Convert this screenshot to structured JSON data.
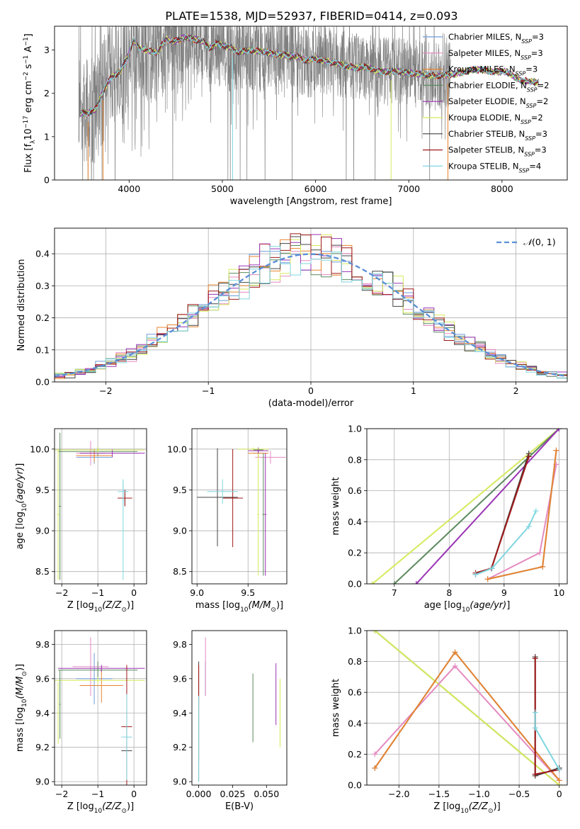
{
  "figure_title": "PLATE=1538, MJD=52937, FIBERID=0414, z=0.093",
  "colors": {
    "Chabrier MILES": "#6f9bd8",
    "Salpeter MILES": "#e58ac1",
    "Kroupa MILES": "#e7842e",
    "Chabrier ELODIE": "#5c8a5e",
    "Salpeter ELODIE": "#9a33b5",
    "Kroupa ELODIE": "#d6ea5c",
    "Chabrier STELIB": "#444444",
    "Salpeter STELIB": "#a01818",
    "Kroupa STELIB": "#7fd6df",
    "data": "#808080",
    "normal": "#5b8fd6"
  },
  "chart_data": [
    {
      "id": "spectrum",
      "type": "line",
      "xlabel": "wavelength [Angstrom, rest frame]",
      "ylabel": "Flux [f_λ10^-17 erg cm^-2 s^-1 A^-1]",
      "xlim": [
        3200,
        8700
      ],
      "ylim": [
        0,
        3.55
      ],
      "xticks": [
        4000,
        5000,
        6000,
        7000,
        8000
      ],
      "yticks": [
        0,
        1,
        2,
        3
      ],
      "legend_position": "upper-right",
      "legend": [
        {
          "label": "Chabrier MILES, N_SSP=3",
          "series": "Chabrier MILES"
        },
        {
          "label": "Salpeter MILES, N_SSP=3",
          "series": "Salpeter MILES"
        },
        {
          "label": "Kroupa MILES, N_SSP=3",
          "series": "Kroupa MILES"
        },
        {
          "label": "Chabrier ELODIE, N_SSP=2",
          "series": "Chabrier ELODIE"
        },
        {
          "label": "Salpeter ELODIE, N_SSP=2",
          "series": "Salpeter ELODIE"
        },
        {
          "label": "Kroupa ELODIE, N_SSP=2",
          "series": "Kroupa ELODIE"
        },
        {
          "label": "Chabrier STELIB, N_SSP=3",
          "series": "Chabrier STELIB"
        },
        {
          "label": "Salpeter STELIB, N_SSP=3",
          "series": "Salpeter STELIB"
        },
        {
          "label": "Kroupa STELIB, N_SSP=4",
          "series": "Kroupa STELIB"
        }
      ],
      "continuum": [
        [
          3480,
          1.55
        ],
        [
          3560,
          1.55
        ],
        [
          3650,
          1.65
        ],
        [
          3720,
          2.05
        ],
        [
          3800,
          2.35
        ],
        [
          3900,
          2.5
        ],
        [
          3980,
          2.8
        ],
        [
          4050,
          3.25
        ],
        [
          4100,
          3.05
        ],
        [
          4200,
          3.0
        ],
        [
          4300,
          2.95
        ],
        [
          4400,
          3.25
        ],
        [
          4500,
          3.2
        ],
        [
          4600,
          3.3
        ],
        [
          4700,
          3.25
        ],
        [
          4800,
          3.2
        ],
        [
          4860,
          3.05
        ],
        [
          4950,
          3.15
        ],
        [
          5100,
          3.05
        ],
        [
          5175,
          2.95
        ],
        [
          5300,
          3.0
        ],
        [
          5450,
          2.95
        ],
        [
          5600,
          2.9
        ],
        [
          5800,
          2.85
        ],
        [
          5900,
          2.75
        ],
        [
          6000,
          2.8
        ],
        [
          6200,
          2.7
        ],
        [
          6400,
          2.6
        ],
        [
          6563,
          2.6
        ],
        [
          6700,
          2.5
        ],
        [
          6900,
          2.5
        ],
        [
          7100,
          2.45
        ],
        [
          7300,
          2.4
        ],
        [
          7500,
          2.45
        ],
        [
          7700,
          2.55
        ],
        [
          7900,
          2.5
        ],
        [
          8050,
          2.5
        ],
        [
          8200,
          2.3
        ],
        [
          8400,
          2.25
        ]
      ],
      "ssp_wavelength_range": [
        3480,
        8400
      ],
      "data_wavelength_range": [
        3460,
        7450
      ]
    },
    {
      "id": "residuals",
      "type": "histogram",
      "xlabel": "(data-model)/error",
      "ylabel": "Normed distribution",
      "xlim": [
        -2.5,
        2.5
      ],
      "ylim": [
        0,
        0.48
      ],
      "xticks": [
        -2,
        -1,
        0,
        1,
        2
      ],
      "yticks": [
        0.0,
        0.1,
        0.2,
        0.3,
        0.4
      ],
      "grid": true,
      "legend_position": "upper-right",
      "legend": [
        {
          "label": "N(0, 1)",
          "series": "normal"
        }
      ],
      "bin_width": 0.1
    },
    {
      "id": "age-vs-Z",
      "type": "errorbar",
      "xlabel": "Z [log10(Z/Z☉)]",
      "ylabel": "age  [log10(age/yr)]",
      "xlim": [
        -2.2,
        0.35
      ],
      "ylim": [
        8.35,
        10.25
      ],
      "xticks": [
        -2,
        -1,
        0
      ],
      "yticks": [
        8.5,
        9.0,
        9.5,
        10.0
      ],
      "grid": true,
      "points": [
        {
          "s": "Chabrier MILES",
          "x": -1.1,
          "xe": 0.5,
          "y": 9.9,
          "ye": 0.08
        },
        {
          "s": "Salpeter MILES",
          "x": -1.2,
          "xe": 0.4,
          "y": 9.95,
          "ye": 0.15
        },
        {
          "s": "Kroupa MILES",
          "x": -1.1,
          "xe": 0.5,
          "y": 9.92,
          "ye": 0.08
        },
        {
          "s": "Chabrier ELODIE",
          "x": -1.0,
          "xe": 1.1,
          "y": 9.97,
          "ye": 0.05
        },
        {
          "s": "Salpeter ELODIE",
          "x": -0.6,
          "xe": 0.9,
          "y": 9.95,
          "ye": 0.05
        },
        {
          "s": "Kroupa ELODIE",
          "x": -1.0,
          "xe": 1.3,
          "y": 9.99,
          "ye": 0.04
        },
        {
          "s": "Chabrier STELIB",
          "x": -0.25,
          "xe": 0.2,
          "y": 9.4,
          "ye": 0.1
        },
        {
          "s": "Salpeter STELIB",
          "x": -0.25,
          "xe": 0.2,
          "y": 9.4,
          "ye": 0.1
        },
        {
          "s": "Kroupa STELIB",
          "x": -0.3,
          "xe": 0.15,
          "y": 9.48,
          "ye": 0.15
        },
        {
          "s": "Chabrier ELODIE",
          "x": -2.05,
          "xe": 0.03,
          "y": 9.3,
          "ye": 0.9
        },
        {
          "s": "Kroupa ELODIE",
          "x": -2.1,
          "xe": 0.03,
          "y": 9.2,
          "ye": 0.8
        },
        {
          "s": "Kroupa STELIB",
          "x": -0.3,
          "xe": 0.03,
          "y": 9.0,
          "ye": 0.6
        }
      ]
    },
    {
      "id": "age-vs-mass",
      "type": "errorbar",
      "xlabel": "mass [log10(M/M☉)]",
      "ylabel": "",
      "xlim": [
        8.95,
        9.88
      ],
      "ylim": [
        8.35,
        10.25
      ],
      "xticks": [
        9.0,
        9.5
      ],
      "yticks": [
        8.5,
        9.0,
        9.5,
        10.0
      ],
      "grid": true,
      "points": [
        {
          "s": "Chabrier MILES",
          "x": 9.6,
          "xe": 0.05,
          "y": 9.95,
          "ye": 0.05
        },
        {
          "s": "Salpeter MILES",
          "x": 9.72,
          "xe": 0.15,
          "y": 9.9,
          "ye": 0.08
        },
        {
          "s": "Kroupa MILES",
          "x": 9.6,
          "xe": 0.1,
          "y": 9.95,
          "ye": 0.05
        },
        {
          "s": "Chabrier ELODIE",
          "x": 9.6,
          "xe": 0.05,
          "y": 9.99,
          "ye": 0.03
        },
        {
          "s": "Salpeter ELODIE",
          "x": 9.6,
          "xe": 0.1,
          "y": 9.98,
          "ye": 0.03
        },
        {
          "s": "Kroupa ELODIE",
          "x": 9.55,
          "xe": 0.15,
          "y": 10.0,
          "ye": 0.02
        },
        {
          "s": "Chabrier STELIB",
          "x": 9.2,
          "xe": 0.2,
          "y": 9.41,
          "ye": 0.6
        },
        {
          "s": "Salpeter STELIB",
          "x": 9.35,
          "xe": 0.1,
          "y": 9.4,
          "ye": 0.6
        },
        {
          "s": "Kroupa STELIB",
          "x": 9.25,
          "xe": 0.15,
          "y": 9.48,
          "ye": 0.15
        },
        {
          "s": "Chabrier ELODIE",
          "x": 9.65,
          "xe": 0.01,
          "y": 9.2,
          "ye": 0.75
        },
        {
          "s": "Kroupa ELODIE",
          "x": 9.6,
          "xe": 0.01,
          "y": 9.2,
          "ye": 0.75
        },
        {
          "s": "Salpeter ELODIE",
          "x": 9.67,
          "xe": 0.01,
          "y": 9.2,
          "ye": 0.75
        }
      ]
    },
    {
      "id": "weight-vs-age",
      "type": "line",
      "xlabel": "age  [log10(age/yr)]",
      "ylabel": "mass weight",
      "xlim": [
        6.5,
        10.15
      ],
      "ylim": [
        0,
        1.0
      ],
      "xticks": [
        7,
        8,
        9,
        10
      ],
      "yticks": [
        0.0,
        0.2,
        0.4,
        0.6,
        0.8,
        1.0
      ],
      "grid": true,
      "series": [
        {
          "s": "Kroupa ELODIE",
          "x": [
            6.6,
            10.0
          ],
          "y": [
            0.0,
            1.0
          ]
        },
        {
          "s": "Chabrier ELODIE",
          "x": [
            7.0,
            10.0
          ],
          "y": [
            0.0,
            1.0
          ]
        },
        {
          "s": "Salpeter ELODIE",
          "x": [
            7.4,
            10.0
          ],
          "y": [
            0.0,
            1.0
          ]
        },
        {
          "s": "Chabrier STELIB",
          "x": [
            8.48,
            8.77,
            9.45
          ],
          "y": [
            0.06,
            0.1,
            0.84
          ]
        },
        {
          "s": "Salpeter STELIB",
          "x": [
            8.48,
            8.77,
            9.45
          ],
          "y": [
            0.07,
            0.1,
            0.82
          ]
        },
        {
          "s": "Kroupa STELIB",
          "x": [
            8.48,
            8.78,
            9.45,
            9.58
          ],
          "y": [
            0.06,
            0.1,
            0.37,
            0.47
          ]
        },
        {
          "s": "Salpeter MILES",
          "x": [
            8.7,
            9.65,
            9.95
          ],
          "y": [
            0.03,
            0.2,
            0.77
          ]
        },
        {
          "s": "Chabrier MILES",
          "x": [
            8.7,
            9.7,
            9.95
          ],
          "y": [
            0.03,
            0.11,
            0.86
          ]
        },
        {
          "s": "Kroupa MILES",
          "x": [
            8.7,
            9.7,
            9.95
          ],
          "y": [
            0.03,
            0.11,
            0.86
          ]
        }
      ]
    },
    {
      "id": "mass-vs-Z",
      "type": "errorbar",
      "xlabel": "Z [log10(Z/Z☉)]",
      "ylabel": "mass [log10(M/M☉)]",
      "xlim": [
        -2.2,
        0.35
      ],
      "ylim": [
        8.98,
        9.88
      ],
      "xticks": [
        -2,
        -1,
        0
      ],
      "yticks": [
        9.0,
        9.2,
        9.4,
        9.6,
        9.8
      ],
      "grid": true,
      "points": [
        {
          "s": "Chabrier MILES",
          "x": -1.1,
          "xe": 0.5,
          "y": 9.6,
          "ye": 0.15
        },
        {
          "s": "Salpeter MILES",
          "x": -1.2,
          "xe": 0.5,
          "y": 9.67,
          "ye": 0.17
        },
        {
          "s": "Kroupa MILES",
          "x": -0.9,
          "xe": 0.6,
          "y": 9.56,
          "ye": 0.1
        },
        {
          "s": "Chabrier ELODIE",
          "x": -1.0,
          "xe": 1.1,
          "y": 9.65,
          "ye": 0.05
        },
        {
          "s": "Salpeter ELODIE",
          "x": -0.9,
          "xe": 1.2,
          "y": 9.66,
          "ye": 0.02
        },
        {
          "s": "Kroupa ELODIE",
          "x": -1.0,
          "xe": 1.3,
          "y": 9.59,
          "ye": 0.02
        },
        {
          "s": "Chabrier STELIB",
          "x": -0.2,
          "xe": 0.15,
          "y": 9.18,
          "ye": 0.15
        },
        {
          "s": "Salpeter STELIB",
          "x": -0.2,
          "xe": 0.15,
          "y": 9.32,
          "ye": 0.36
        },
        {
          "s": "Kroupa STELIB",
          "x": -0.2,
          "xe": 0.15,
          "y": 9.26,
          "ye": 0.25
        },
        {
          "s": "Kroupa ELODIE",
          "x": -2.1,
          "xe": 0.02,
          "y": 9.4,
          "ye": 0.18
        },
        {
          "s": "Chabrier ELODIE",
          "x": -2.05,
          "xe": 0.02,
          "y": 9.45,
          "ye": 0.2
        }
      ]
    },
    {
      "id": "mass-vs-EBV",
      "type": "errorbar",
      "xlabel": "E(B-V)",
      "ylabel": "",
      "xlim": [
        -0.005,
        0.065
      ],
      "ylim": [
        8.98,
        9.88
      ],
      "xticks": [
        0.0,
        0.025,
        0.05
      ],
      "yticks": [
        9.0,
        9.2,
        9.4,
        9.6,
        9.8
      ],
      "grid": false,
      "points": [
        {
          "s": "Chabrier MILES",
          "x": 0.005,
          "xe": 0,
          "y": 9.6,
          "ye": 0.1
        },
        {
          "s": "Salpeter MILES",
          "x": 0.005,
          "xe": 0,
          "y": 9.67,
          "ye": 0.17
        },
        {
          "s": "Kroupa MILES",
          "x": 0.0,
          "xe": 0,
          "y": 9.56,
          "ye": 0.12
        },
        {
          "s": "Chabrier ELODIE",
          "x": 0.04,
          "xe": 0,
          "y": 9.43,
          "ye": 0.2
        },
        {
          "s": "Salpeter ELODIE",
          "x": 0.057,
          "xe": 0,
          "y": 9.51,
          "ye": 0.18
        },
        {
          "s": "Kroupa ELODIE",
          "x": 0.06,
          "xe": 0,
          "y": 9.4,
          "ye": 0.2
        },
        {
          "s": "Chabrier STELIB",
          "x": 0.0,
          "xe": 0,
          "y": 9.35,
          "ye": 0.35
        },
        {
          "s": "Salpeter STELIB",
          "x": 0.0,
          "xe": 0,
          "y": 9.4,
          "ye": 0.28
        },
        {
          "s": "Kroupa STELIB",
          "x": 0.0,
          "xe": 0,
          "y": 9.25,
          "ye": 0.25
        }
      ]
    },
    {
      "id": "weight-vs-Z",
      "type": "line",
      "xlabel": "Z [log10(Z/Z☉)]",
      "ylabel": "mass weight",
      "xlim": [
        -2.4,
        0.1
      ],
      "ylim": [
        0,
        1.0
      ],
      "xticks": [
        -2.0,
        -1.5,
        -1.0,
        -0.5,
        0.0
      ],
      "yticks": [
        0.0,
        0.2,
        0.4,
        0.6,
        0.8,
        1.0
      ],
      "grid": true,
      "series": [
        {
          "s": "Chabrier ELODIE",
          "x": [
            -2.3,
            0.0
          ],
          "y": [
            1.0,
            0.0
          ]
        },
        {
          "s": "Kroupa ELODIE",
          "x": [
            -2.3,
            0.0
          ],
          "y": [
            1.0,
            0.0
          ]
        },
        {
          "s": "Salpeter MILES",
          "x": [
            -2.3,
            -1.3,
            0.0
          ],
          "y": [
            0.2,
            0.77,
            0.03
          ]
        },
        {
          "s": "Chabrier MILES",
          "x": [
            -2.3,
            -1.3,
            0.0
          ],
          "y": [
            0.11,
            0.86,
            0.03
          ]
        },
        {
          "s": "Kroupa MILES",
          "x": [
            -2.3,
            -1.3,
            0.0
          ],
          "y": [
            0.11,
            0.86,
            0.03
          ]
        },
        {
          "s": "Chabrier STELIB",
          "x": [
            -0.3,
            -0.3,
            0.0
          ],
          "y": [
            0.83,
            0.06,
            0.11
          ]
        },
        {
          "s": "Salpeter STELIB",
          "x": [
            -0.3,
            -0.3,
            0.0
          ],
          "y": [
            0.82,
            0.07,
            0.1
          ]
        },
        {
          "s": "Kroupa STELIB",
          "x": [
            -0.3,
            -0.3,
            0.0
          ],
          "y": [
            0.47,
            0.37,
            0.1
          ]
        }
      ]
    }
  ]
}
